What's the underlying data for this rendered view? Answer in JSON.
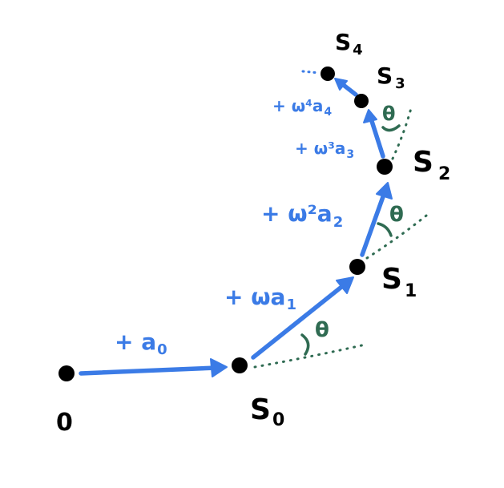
{
  "points": {
    "origin": "0",
    "s0": "S",
    "s0_sub": "0",
    "s1": "S",
    "s1_sub": "1",
    "s2": "S",
    "s2_sub": "2",
    "s3": "S",
    "s3_sub": "3",
    "s4": "S",
    "s4_sub": "4"
  },
  "steps": {
    "a0": "+ a",
    "a0_sub": "0",
    "a1": "+ ωa",
    "a1_sub": "1",
    "a2": "+ ω²a",
    "a2_sub": "2",
    "a3": "+ ω³a",
    "a3_sub": "3",
    "a4": "+ ω⁴a",
    "a4_sub": "4"
  },
  "angle_label": "θ",
  "colors": {
    "arrow": "#3b7be6",
    "angle": "#2f6b52",
    "point": "#000000"
  }
}
